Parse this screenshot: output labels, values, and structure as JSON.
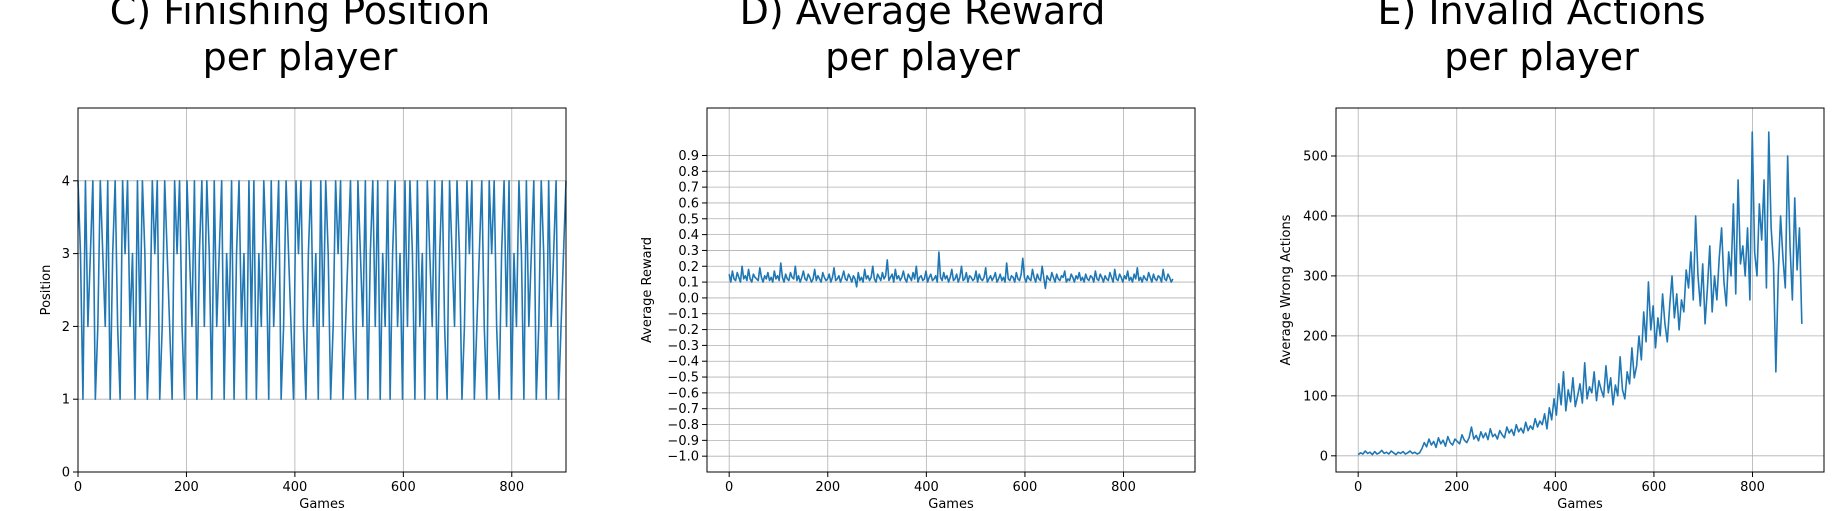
{
  "chart_data": [
    {
      "id": "C",
      "type": "line",
      "title_line1": "C) Finishing Position",
      "title_line2": "per player",
      "xlabel": "Games",
      "ylabel": "Position",
      "xlim": [
        0,
        900
      ],
      "ylim": [
        0,
        5
      ],
      "xticks": [
        0,
        200,
        400,
        600,
        800
      ],
      "yticks": [
        0,
        1,
        2,
        3,
        4
      ],
      "ytick_labels": [
        "0",
        "1",
        "2",
        "3",
        "4"
      ],
      "grid": true,
      "color": "#1f77b4",
      "series": [
        {
          "values": [
            4,
            3,
            1,
            4,
            2,
            3,
            4,
            1,
            2,
            4,
            3,
            2,
            4,
            1,
            3,
            4,
            2,
            1,
            4,
            3,
            4,
            2,
            3,
            1,
            4,
            2,
            4,
            3,
            1,
            2,
            4,
            3,
            4,
            1,
            2,
            4,
            3,
            2,
            1,
            4,
            3,
            4,
            2,
            1,
            4,
            3,
            2,
            4,
            1,
            3,
            4,
            2,
            4,
            3,
            1,
            4,
            2,
            3,
            4,
            1,
            3,
            2,
            4,
            1,
            3,
            4,
            2,
            3,
            1,
            4,
            2,
            4,
            1,
            3,
            2,
            4,
            3,
            1,
            4,
            2,
            3,
            4,
            1,
            2,
            4,
            3,
            2,
            1,
            4,
            3,
            4,
            2,
            1,
            3,
            4,
            2,
            3,
            1,
            4,
            2,
            4,
            3,
            1,
            2,
            4,
            3,
            4,
            1,
            2,
            3,
            4,
            2,
            1,
            4,
            3,
            2,
            4,
            1,
            3,
            4,
            2,
            4,
            1,
            3,
            2,
            4,
            1,
            3,
            4,
            2,
            3,
            1,
            4,
            2,
            4,
            3,
            1,
            4,
            2,
            3,
            1,
            4,
            3,
            2,
            4,
            1,
            3,
            4,
            2,
            1,
            4,
            3,
            2,
            4,
            3,
            1,
            2,
            4,
            3,
            4,
            1,
            2,
            3,
            4,
            2,
            1,
            4,
            3,
            4,
            2,
            1,
            3,
            4,
            2,
            4,
            1,
            3,
            2,
            4,
            3,
            1,
            4,
            2,
            3,
            4,
            1,
            2,
            4,
            3,
            1,
            4,
            2,
            3,
            4,
            1,
            2,
            3,
            4
          ]
        }
      ]
    },
    {
      "id": "D",
      "type": "line",
      "title_line1": "D) Average Reward",
      "title_line2": "per player",
      "xlabel": "Games",
      "ylabel": "Average Reward",
      "xlim": [
        -45,
        945
      ],
      "ylim": [
        -1.1,
        1.2
      ],
      "xticks": [
        0,
        200,
        400,
        600,
        800
      ],
      "yticks": [
        -1.0,
        -0.9,
        -0.8,
        -0.7,
        -0.6,
        -0.5,
        -0.4,
        -0.3,
        -0.2,
        -0.1,
        0.0,
        0.1,
        0.2,
        0.3,
        0.4,
        0.5,
        0.6,
        0.7,
        0.8,
        0.9
      ],
      "ytick_labels": [
        "−1.0",
        "−0.9",
        "−0.8",
        "−0.7",
        "−0.6",
        "−0.5",
        "−0.4",
        "−0.3",
        "−0.2",
        "−0.1",
        "0.0",
        "0.1",
        "0.2",
        "0.3",
        "0.4",
        "0.5",
        "0.6",
        "0.7",
        "0.8",
        "0.9"
      ],
      "grid": true,
      "color": "#1f77b4",
      "series": [
        {
          "values": [
            0.15,
            0.1,
            0.17,
            0.12,
            0.11,
            0.16,
            0.13,
            0.1,
            0.2,
            0.12,
            0.14,
            0.11,
            0.18,
            0.12,
            0.1,
            0.15,
            0.13,
            0.12,
            0.11,
            0.19,
            0.13,
            0.1,
            0.14,
            0.12,
            0.16,
            0.11,
            0.13,
            0.1,
            0.17,
            0.12,
            0.14,
            0.11,
            0.22,
            0.13,
            0.1,
            0.15,
            0.12,
            0.11,
            0.16,
            0.13,
            0.12,
            0.2,
            0.11,
            0.14,
            0.1,
            0.13,
            0.17,
            0.12,
            0.11,
            0.15,
            0.13,
            0.1,
            0.12,
            0.18,
            0.11,
            0.14,
            0.12,
            0.1,
            0.16,
            0.13,
            0.11,
            0.12,
            0.15,
            0.1,
            0.13,
            0.19,
            0.11,
            0.12,
            0.14,
            0.1,
            0.13,
            0.17,
            0.12,
            0.11,
            0.15,
            0.13,
            0.1,
            0.14,
            0.12,
            0.07,
            0.16,
            0.11,
            0.13,
            0.1,
            0.18,
            0.12,
            0.14,
            0.11,
            0.13,
            0.2,
            0.12,
            0.1,
            0.15,
            0.13,
            0.11,
            0.16,
            0.12,
            0.14,
            0.24,
            0.11,
            0.13,
            0.15,
            0.1,
            0.18,
            0.12,
            0.14,
            0.11,
            0.13,
            0.17,
            0.12,
            0.1,
            0.15,
            0.13,
            0.11,
            0.16,
            0.12,
            0.2,
            0.1,
            0.13,
            0.14,
            0.11,
            0.12,
            0.17,
            0.1,
            0.13,
            0.15,
            0.11,
            0.12,
            0.14,
            0.1,
            0.29,
            0.13,
            0.11,
            0.16,
            0.12,
            0.14,
            0.1,
            0.13,
            0.18,
            0.11,
            0.12,
            0.15,
            0.1,
            0.13,
            0.2,
            0.11,
            0.12,
            0.16,
            0.1,
            0.14,
            0.13,
            0.11,
            0.12,
            0.17,
            0.1,
            0.15,
            0.12,
            0.11,
            0.13,
            0.19,
            0.1,
            0.12,
            0.14,
            0.11,
            0.13,
            0.16,
            0.1,
            0.12,
            0.15,
            0.11,
            0.13,
            0.1,
            0.22,
            0.12,
            0.11,
            0.14,
            0.13,
            0.1,
            0.16,
            0.12,
            0.11,
            0.15,
            0.25,
            0.13,
            0.1,
            0.14,
            0.12,
            0.11,
            0.18,
            0.13,
            0.1,
            0.15,
            0.12,
            0.11,
            0.2,
            0.13,
            0.06,
            0.14,
            0.12,
            0.11,
            0.16,
            0.13,
            0.1,
            0.15,
            0.12,
            0.11,
            0.14,
            0.13,
            0.17,
            0.1,
            0.12,
            0.11,
            0.15,
            0.13,
            0.1,
            0.14,
            0.12,
            0.16,
            0.11,
            0.13,
            0.1,
            0.15,
            0.12,
            0.11,
            0.14,
            0.13,
            0.1,
            0.17,
            0.12,
            0.11,
            0.15,
            0.13,
            0.1,
            0.14,
            0.12,
            0.11,
            0.16,
            0.13,
            0.1,
            0.18,
            0.12,
            0.11,
            0.15,
            0.13,
            0.1,
            0.14,
            0.12,
            0.17,
            0.11,
            0.13,
            0.1,
            0.15,
            0.12,
            0.19,
            0.11,
            0.13,
            0.1,
            0.14,
            0.12,
            0.11,
            0.16,
            0.13,
            0.1,
            0.15,
            0.12,
            0.11,
            0.14,
            0.13,
            0.1,
            0.18,
            0.12,
            0.11,
            0.15,
            0.13,
            0.1,
            0.12
          ]
        }
      ]
    },
    {
      "id": "E",
      "type": "line",
      "title_line1": "E) Invalid Actions",
      "title_line2": "per player",
      "xlabel": "Games",
      "ylabel": "Average Wrong Actions",
      "xlim": [
        -45,
        945
      ],
      "ylim": [
        -27,
        580
      ],
      "xticks": [
        0,
        200,
        400,
        600,
        800
      ],
      "yticks": [
        0,
        100,
        200,
        300,
        400,
        500
      ],
      "ytick_labels": [
        "0",
        "100",
        "200",
        "300",
        "400",
        "500"
      ],
      "grid": true,
      "color": "#1f77b4",
      "series": [
        {
          "values": [
            2,
            5,
            3,
            8,
            4,
            6,
            2,
            7,
            3,
            5,
            9,
            4,
            6,
            3,
            8,
            5,
            2,
            6,
            4,
            7,
            3,
            5,
            8,
            4,
            6,
            3,
            5,
            12,
            22,
            15,
            28,
            18,
            24,
            14,
            30,
            20,
            26,
            16,
            32,
            22,
            18,
            28,
            24,
            20,
            35,
            26,
            22,
            30,
            48,
            28,
            34,
            25,
            40,
            30,
            38,
            27,
            45,
            32,
            36,
            28,
            42,
            35,
            30,
            48,
            38,
            44,
            34,
            52,
            40,
            46,
            38,
            56,
            42,
            50,
            44,
            62,
            48,
            58,
            52,
            70,
            45,
            80,
            60,
            95,
            68,
            120,
            85,
            140,
            75,
            110,
            90,
            130,
            82,
            100,
            120,
            88,
            155,
            95,
            115,
            105,
            140,
            92,
            125,
            110,
            98,
            150,
            105,
            130,
            85,
            118,
            100,
            165,
            110,
            95,
            140,
            120,
            180,
            130,
            150,
            200,
            160,
            240,
            190,
            290,
            210,
            250,
            180,
            230,
            200,
            270,
            220,
            190,
            250,
            300,
            230,
            270,
            210,
            260,
            240,
            310,
            280,
            340,
            260,
            400,
            300,
            250,
            320,
            220,
            280,
            350,
            240,
            300,
            260,
            330,
            380,
            290,
            250,
            340,
            300,
            420,
            270,
            460,
            320,
            350,
            300,
            380,
            260,
            540,
            340,
            300,
            420,
            360,
            460,
            280,
            540,
            380,
            320,
            140,
            300,
            400,
            330,
            280,
            500,
            350,
            260,
            430,
            310,
            380,
            220
          ]
        }
      ]
    }
  ]
}
